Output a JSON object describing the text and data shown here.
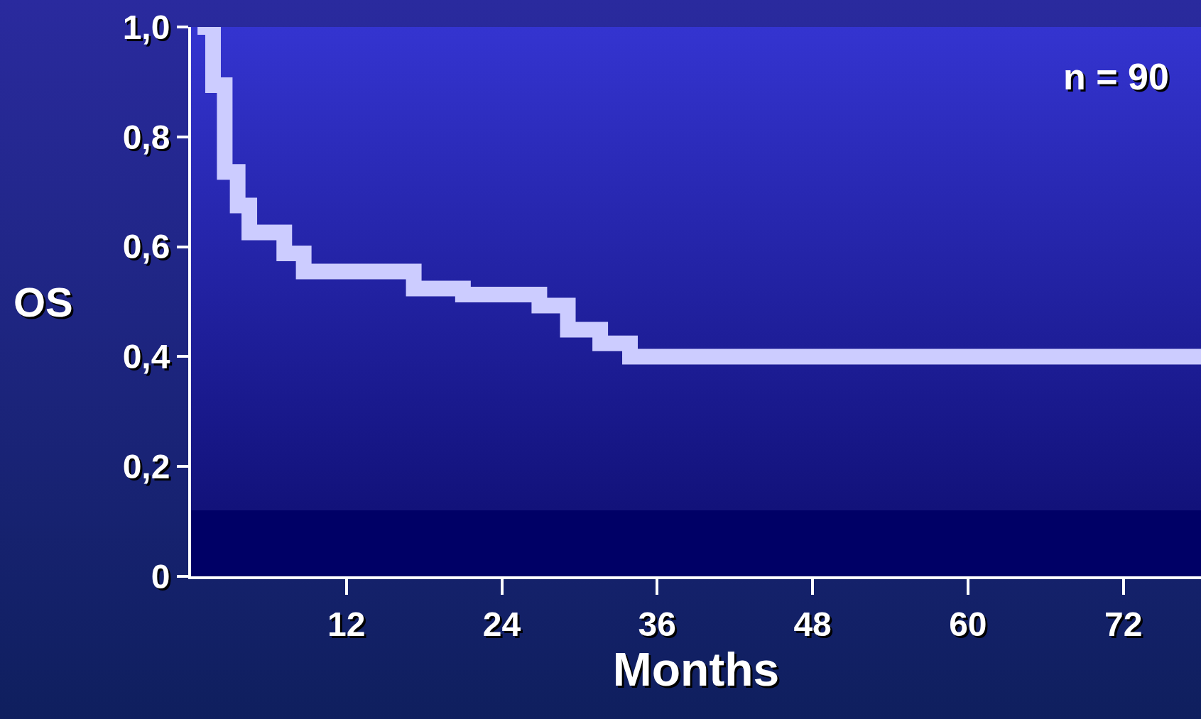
{
  "chart_data": {
    "type": "step",
    "xlabel": "Months",
    "ylabel": "OS",
    "annotations": [
      "n = 90"
    ],
    "x": [
      0.5,
      1.7,
      2.6,
      3.6,
      4.5,
      7.2,
      8.7,
      17.2,
      21,
      26.9,
      29.1,
      31.6,
      33.9,
      78
    ],
    "series": [
      {
        "color": "#ccccff",
        "values": [
          1.0,
          0.894,
          0.736,
          0.675,
          0.626,
          0.588,
          0.555,
          0.524,
          0.513,
          0.493,
          0.449,
          0.424,
          0.4,
          0.4
        ]
      }
    ],
    "xlim": [
      0,
      78
    ],
    "ylim": [
      0,
      1.0
    ],
    "xticks": [
      12,
      24,
      36,
      48,
      60,
      72
    ],
    "yticks": [
      0,
      {
        "value": 0.2,
        "label": "0,2"
      },
      {
        "value": 0.4,
        "label": "0,4"
      },
      {
        "value": 0.6,
        "label": "0,6"
      },
      {
        "value": 0.8,
        "label": "0,8"
      },
      {
        "value": 1.0,
        "label": "1,0"
      }
    ],
    "grid": false,
    "marker": "none",
    "line_style": "solid"
  }
}
